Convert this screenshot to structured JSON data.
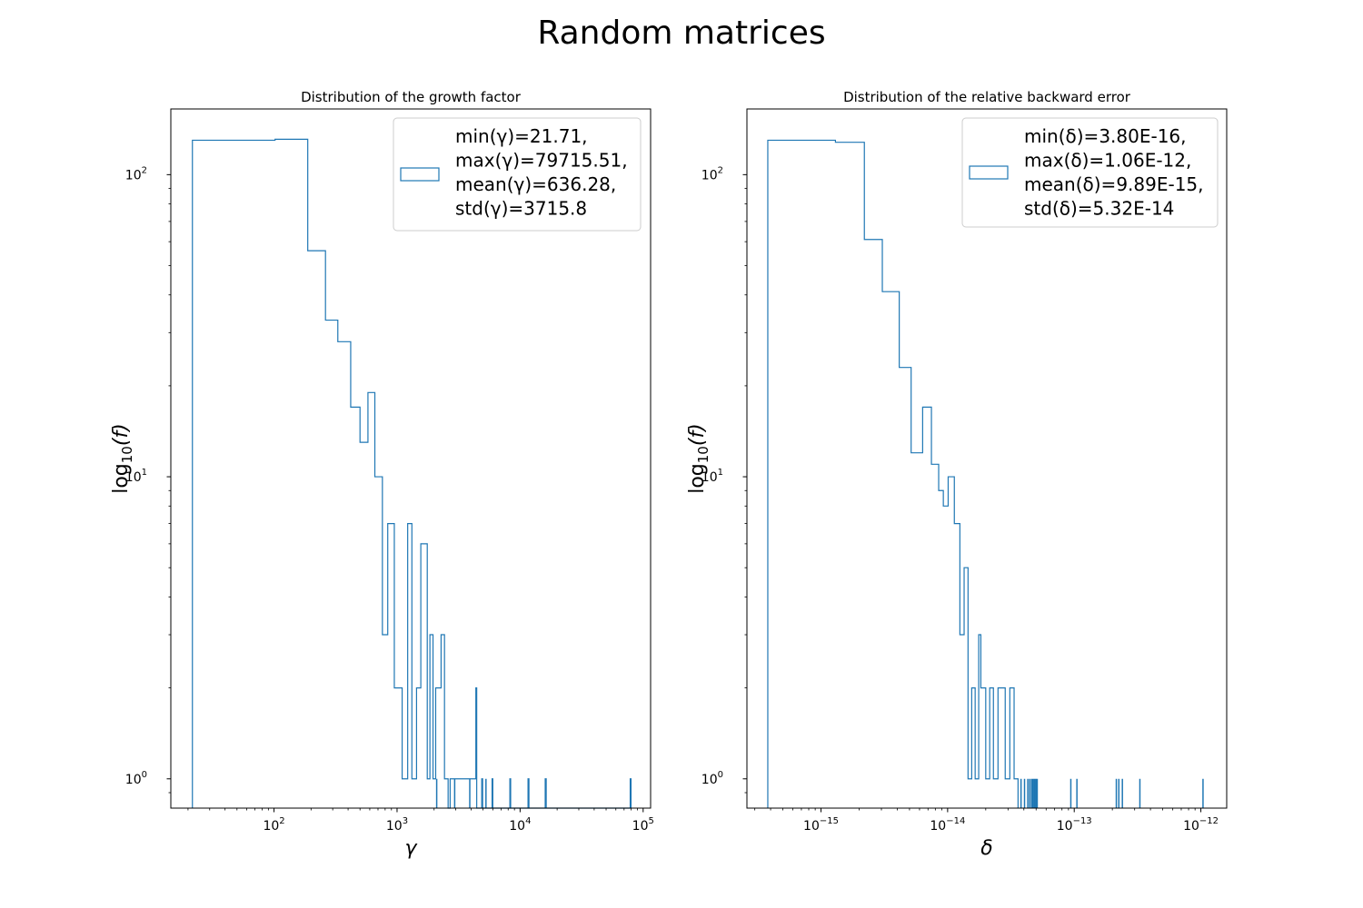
{
  "title": "Random matrices",
  "colors": {
    "series": "#1f77b4",
    "axes": "#000000",
    "legend_border": "#cccccc"
  },
  "chart_data": [
    {
      "type": "histogram",
      "name": "growth-factor",
      "title": "Distribution of the growth factor",
      "xlabel": "γ",
      "ylabel_prefix": "log",
      "ylabel_sub": "10",
      "ylabel_arg": "(f)",
      "xscale": "log",
      "yscale": "log",
      "xlim": [
        14.5,
        115000
      ],
      "ylim": [
        0.8,
        165
      ],
      "grid": false,
      "x_ticks": [
        {
          "value": 100,
          "base": "10",
          "exp": "2"
        },
        {
          "value": 1000,
          "base": "10",
          "exp": "3"
        },
        {
          "value": 10000,
          "base": "10",
          "exp": "4"
        },
        {
          "value": 100000,
          "base": "10",
          "exp": "5"
        }
      ],
      "y_ticks": [
        {
          "value": 1,
          "base": "10",
          "exp": "0"
        },
        {
          "value": 10,
          "base": "10",
          "exp": "1"
        },
        {
          "value": 100,
          "base": "10",
          "exp": "2"
        }
      ],
      "legend": {
        "position": "upper right",
        "lines": [
          "min(γ)=21.71,",
          "max(γ)=79715.51,",
          "mean(γ)=636.28,",
          "std(γ)=3715.8"
        ]
      },
      "edges": [
        21.71,
        102,
        188,
        262,
        330,
        420,
        500,
        580,
        660,
        760,
        840,
        950,
        1100,
        1220,
        1320,
        1440,
        1560,
        1760,
        1850,
        1960,
        2060,
        2280,
        2430,
        2600,
        2700,
        4370,
        4440,
        4880,
        4960,
        5920,
        6000,
        8260,
        8380,
        11600,
        11800,
        16000,
        16300,
        78500,
        79715.51
      ],
      "counts": [
        130,
        131,
        56,
        33,
        28,
        17,
        13,
        19,
        10,
        3,
        7,
        2,
        1,
        7,
        1,
        2,
        6,
        1,
        3,
        1,
        2,
        3,
        1,
        0,
        1,
        2,
        0,
        1,
        0,
        1,
        0,
        1,
        0,
        1,
        0,
        1,
        0,
        1
      ],
      "spikes": [
        2100,
        2940,
        3900,
        5280
      ]
    },
    {
      "type": "histogram",
      "name": "backward-error",
      "title": "Distribution of the relative backward error",
      "xlabel": "δ",
      "ylabel_prefix": "log",
      "ylabel_sub": "10",
      "ylabel_arg": "(f)",
      "xscale": "log",
      "yscale": "log",
      "xlim": [
        2.6e-16,
        1.6e-12
      ],
      "ylim": [
        0.8,
        165
      ],
      "grid": false,
      "x_ticks": [
        {
          "value": 1e-15,
          "base": "10",
          "exp": "−15"
        },
        {
          "value": 1e-14,
          "base": "10",
          "exp": "−14"
        },
        {
          "value": 1e-13,
          "base": "10",
          "exp": "−13"
        },
        {
          "value": 1e-12,
          "base": "10",
          "exp": "−12"
        }
      ],
      "y_ticks": [
        {
          "value": 1,
          "base": "10",
          "exp": "0"
        },
        {
          "value": 10,
          "base": "10",
          "exp": "1"
        },
        {
          "value": 100,
          "base": "10",
          "exp": "2"
        }
      ],
      "legend": {
        "position": "upper right",
        "lines": [
          "min(δ)=3.80E-16,",
          "max(δ)=1.06E-12,",
          "mean(δ)=9.89E-15,",
          "std(δ)=5.32E-14"
        ]
      },
      "edges": [
        3.8e-16,
        1.3e-15,
        2.2e-15,
        3.05e-15,
        4.15e-15,
        5.15e-15,
        6.35e-15,
        7.45e-15,
        8.5e-15,
        9.25e-15,
        1.01e-14,
        1.13e-14,
        1.25e-14,
        1.35e-14,
        1.45e-14,
        1.55e-14,
        1.65e-14,
        1.76e-14,
        1.83e-14,
        2e-14,
        2.15e-14,
        2.3e-14,
        2.5e-14,
        2.85e-14,
        3.1e-14,
        3.35e-14,
        3.6e-14
      ],
      "counts": [
        130,
        128,
        61,
        41,
        23,
        12,
        17,
        11,
        9,
        8,
        10,
        7,
        3,
        5,
        1,
        2,
        1,
        3,
        2,
        1,
        2,
        1,
        2,
        1,
        2,
        1
      ],
      "spikes": [
        3.8e-14,
        4.05e-14,
        4.3e-14,
        4.45e-14,
        4.6e-14,
        4.7e-14,
        4.8e-14,
        4.9e-14,
        5e-14,
        5.1e-14,
        9.4e-14,
        1.05e-13,
        2.15e-13,
        2.25e-13,
        2.4e-13,
        3.3e-13,
        1.04e-12
      ]
    }
  ]
}
